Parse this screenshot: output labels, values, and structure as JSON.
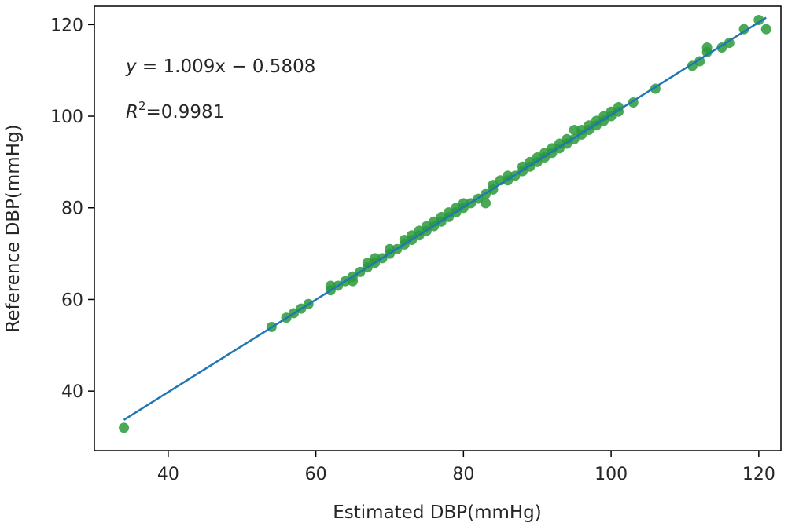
{
  "chart_data": {
    "type": "scatter",
    "title": "",
    "xlabel": "Estimated DBP(mmHg)",
    "ylabel": "Reference DBP(mmHg)",
    "xlim": [
      30,
      123
    ],
    "ylim": [
      27,
      124
    ],
    "xticks": [
      40,
      60,
      80,
      100,
      120
    ],
    "yticks": [
      40,
      60,
      80,
      100,
      120
    ],
    "grid": false,
    "point_color": "#2a9a3a",
    "line_color": "#1f77b4",
    "annotations": {
      "equation_y": "y",
      "equation_rest": " = 1.009x − 0.5808",
      "r2_label": "R",
      "r2_sup": "2",
      "r2_value": "=0.9981"
    },
    "fit_line": {
      "slope": 1.009,
      "intercept": -0.5808,
      "x_range": [
        34,
        121
      ]
    },
    "points": [
      [
        34,
        32
      ],
      [
        54,
        54
      ],
      [
        56,
        56
      ],
      [
        57,
        57
      ],
      [
        58,
        58
      ],
      [
        59,
        59
      ],
      [
        62,
        62
      ],
      [
        62,
        63
      ],
      [
        63,
        63
      ],
      [
        64,
        64
      ],
      [
        65,
        64
      ],
      [
        65,
        65
      ],
      [
        66,
        66
      ],
      [
        67,
        67
      ],
      [
        67,
        68
      ],
      [
        68,
        68
      ],
      [
        68,
        69
      ],
      [
        69,
        69
      ],
      [
        70,
        70
      ],
      [
        70,
        71
      ],
      [
        71,
        71
      ],
      [
        72,
        72
      ],
      [
        72,
        73
      ],
      [
        73,
        73
      ],
      [
        73,
        74
      ],
      [
        74,
        74
      ],
      [
        74,
        75
      ],
      [
        75,
        75
      ],
      [
        75,
        76
      ],
      [
        76,
        76
      ],
      [
        76,
        77
      ],
      [
        77,
        77
      ],
      [
        77,
        78
      ],
      [
        78,
        78
      ],
      [
        78,
        79
      ],
      [
        79,
        79
      ],
      [
        79,
        80
      ],
      [
        80,
        80
      ],
      [
        80,
        81
      ],
      [
        81,
        81
      ],
      [
        82,
        82
      ],
      [
        83,
        81
      ],
      [
        83,
        83
      ],
      [
        84,
        85
      ],
      [
        84,
        84
      ],
      [
        85,
        86
      ],
      [
        86,
        86
      ],
      [
        86,
        87
      ],
      [
        87,
        87
      ],
      [
        88,
        88
      ],
      [
        88,
        89
      ],
      [
        89,
        89
      ],
      [
        89,
        90
      ],
      [
        90,
        90
      ],
      [
        90,
        91
      ],
      [
        91,
        91
      ],
      [
        91,
        92
      ],
      [
        92,
        92
      ],
      [
        92,
        93
      ],
      [
        93,
        93
      ],
      [
        93,
        94
      ],
      [
        94,
        94
      ],
      [
        94,
        95
      ],
      [
        95,
        95
      ],
      [
        95,
        97
      ],
      [
        96,
        96
      ],
      [
        96,
        97
      ],
      [
        97,
        97
      ],
      [
        97,
        98
      ],
      [
        98,
        98
      ],
      [
        98,
        99
      ],
      [
        99,
        99
      ],
      [
        99,
        100
      ],
      [
        100,
        100
      ],
      [
        100,
        101
      ],
      [
        101,
        101
      ],
      [
        101,
        102
      ],
      [
        103,
        103
      ],
      [
        106,
        106
      ],
      [
        111,
        111
      ],
      [
        112,
        112
      ],
      [
        113,
        114
      ],
      [
        113,
        115
      ],
      [
        115,
        115
      ],
      [
        116,
        116
      ],
      [
        118,
        119
      ],
      [
        120,
        121
      ],
      [
        121,
        119
      ]
    ]
  }
}
